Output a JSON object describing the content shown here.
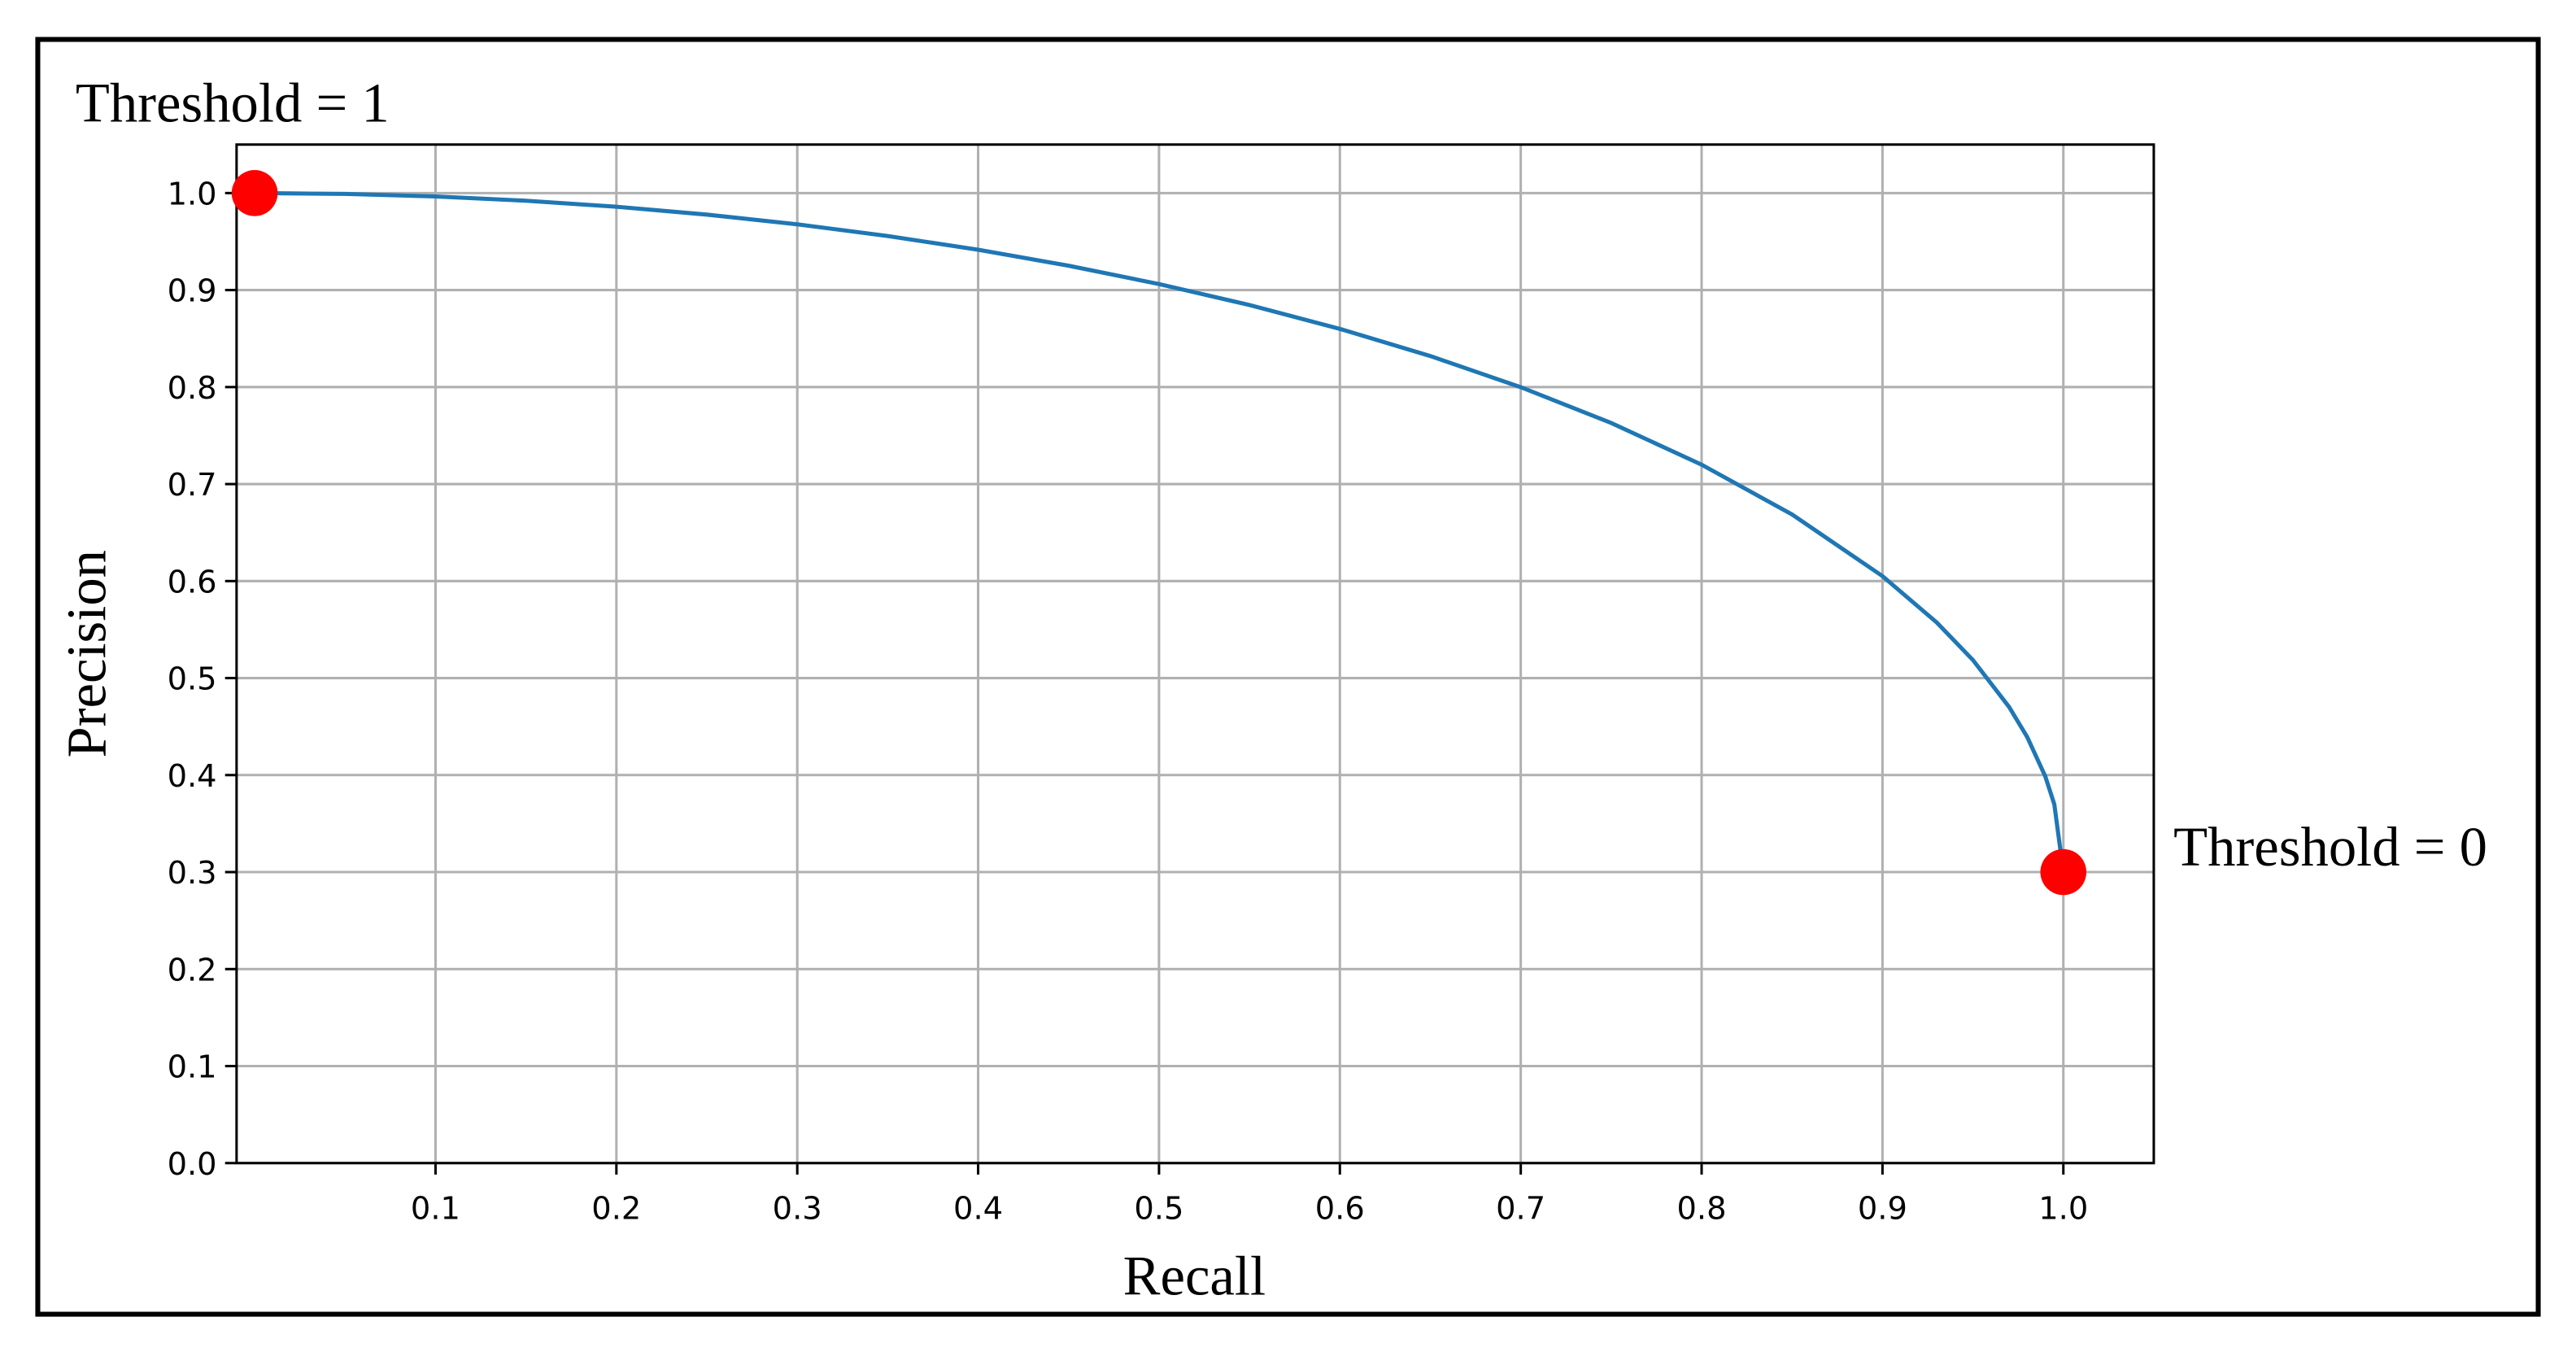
{
  "chart_data": {
    "type": "line",
    "x_label": "Recall",
    "y_label": "Precision",
    "annotations": [
      "Threshold = 1",
      "Threshold = 0"
    ],
    "xlim": [
      -0.01,
      1.05
    ],
    "ylim": [
      0,
      1.05
    ],
    "xticks": [
      0.1,
      0.2,
      0.3,
      0.4,
      0.5,
      0.6,
      0.7,
      0.8,
      0.9,
      {
        "value": 1,
        "label": "1.0"
      }
    ],
    "yticks": [
      {
        "value": 0,
        "label": "0.0"
      },
      0.1,
      0.2,
      0.3,
      0.4,
      0.5,
      0.6,
      0.7,
      0.8,
      0.9,
      {
        "value": 1,
        "label": "1.0"
      }
    ],
    "grid": true,
    "series": [
      {
        "style": "line",
        "color": "#1f77b4",
        "x": [
          0,
          0.05,
          0.1,
          0.15,
          0.2,
          0.25,
          0.3,
          0.35,
          0.4,
          0.45,
          0.5,
          0.55,
          0.6,
          0.65,
          0.7,
          0.75,
          0.8,
          0.85,
          0.9,
          0.93,
          0.95,
          0.97,
          0.98,
          0.99,
          0.995,
          1
        ],
        "values": [
          1,
          0.9991,
          0.9965,
          0.9921,
          0.9859,
          0.9778,
          0.9678,
          0.9557,
          0.9416,
          0.9251,
          0.9062,
          0.8846,
          0.86,
          0.832,
          0.7999,
          0.763,
          0.72,
          0.6687,
          0.6051,
          0.5573,
          0.5186,
          0.4702,
          0.4393,
          0.3987,
          0.3699,
          0.3
        ]
      },
      {
        "style": "marker",
        "color": "#ff0000",
        "x": [
          0,
          1
        ],
        "values": [
          1,
          0.3
        ]
      }
    ]
  }
}
